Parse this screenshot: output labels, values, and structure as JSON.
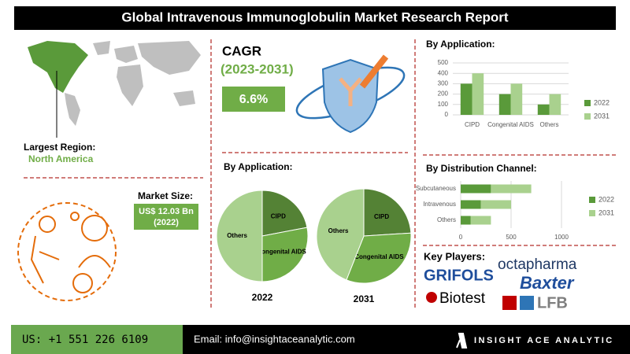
{
  "header": {
    "title": "Global Intravenous Immunoglobulin Market Research Report"
  },
  "region": {
    "label": "Largest Region:",
    "value": "North America"
  },
  "cagr": {
    "label": "CAGR",
    "period": "(2023-2031)",
    "value": "6.6%"
  },
  "market_size": {
    "label": "Market Size:",
    "value": "US$ 12.03 Bn",
    "year": "(2022)"
  },
  "pie_section": {
    "title": "By Application:"
  },
  "key_players": {
    "label": "Key Players:",
    "logos": [
      "GRIFOLS",
      "octapharma",
      "Baxter",
      "Biotest",
      "LFB"
    ]
  },
  "footer": {
    "phone": "US: +1 551 226 6109",
    "email": "Email: info@insightaceanalytic.com",
    "brand": "INSIGHT ACE ANALYTIC"
  },
  "chart_data": [
    {
      "type": "bar",
      "title": "By Application:",
      "categories": [
        "CIPD",
        "Congenital AIDS",
        "Others"
      ],
      "series": [
        {
          "name": "2022",
          "color": "#5a9a3a",
          "values": [
            300,
            200,
            100
          ]
        },
        {
          "name": "2031",
          "color": "#a9d18e",
          "values": [
            400,
            300,
            200
          ]
        }
      ],
      "ylim": [
        0,
        500
      ],
      "yticks": [
        0,
        100,
        200,
        300,
        400,
        500
      ],
      "grid": true,
      "legend": "right"
    },
    {
      "type": "hbar",
      "title": "By Distribution Channel:",
      "stacked": true,
      "categories": [
        "Subcutaneous",
        "Intravenous",
        "Others"
      ],
      "series": [
        {
          "name": "2022",
          "color": "#5a9a3a",
          "values": [
            300,
            200,
            100
          ]
        },
        {
          "name": "2031",
          "color": "#a9d18e",
          "values": [
            400,
            300,
            200
          ]
        }
      ],
      "xlim": [
        0,
        1000
      ],
      "xticks": [
        0,
        500,
        1000
      ],
      "grid": true,
      "legend": "right"
    },
    {
      "type": "pie",
      "title": "2022",
      "categories": [
        "CIPD",
        "Congenital AIDS",
        "Others"
      ],
      "values": [
        22,
        28,
        50
      ],
      "colors": [
        "#548235",
        "#70ad47",
        "#a9d18e"
      ]
    },
    {
      "type": "pie",
      "title": "2031",
      "categories": [
        "CIPD",
        "Congenital AIDS",
        "Others"
      ],
      "values": [
        24,
        32,
        44
      ],
      "colors": [
        "#548235",
        "#70ad47",
        "#a9d18e"
      ]
    }
  ]
}
